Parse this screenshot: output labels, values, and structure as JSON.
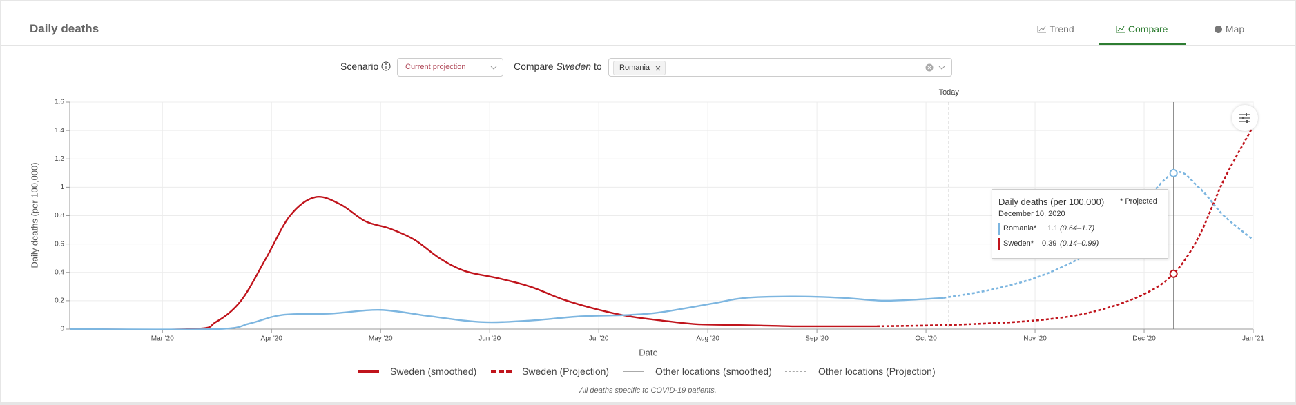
{
  "header": {
    "title": "Daily deaths",
    "tabs": [
      "Trend",
      "Compare",
      "Map"
    ]
  },
  "controls": {
    "scenario_label": "Scenario",
    "scenario_value": "Current projection",
    "compare_prefix": "Compare",
    "compare_location": "Sweden",
    "compare_suffix": "to",
    "selected": "Romania"
  },
  "chart_data": {
    "type": "line",
    "xlabel": "Date",
    "ylabel": "Daily deaths (per 100,000)",
    "xlim": [
      1.15,
      12
    ],
    "ylim": [
      0,
      1.6
    ],
    "xticks": [
      {
        "value": 2,
        "label": "Mar '20"
      },
      {
        "value": 3,
        "label": "Apr '20"
      },
      {
        "value": 4,
        "label": "May '20"
      },
      {
        "value": 5,
        "label": "Jun '20"
      },
      {
        "value": 6,
        "label": "Jul '20"
      },
      {
        "value": 7,
        "label": "Aug '20"
      },
      {
        "value": 8,
        "label": "Sep '20"
      },
      {
        "value": 9,
        "label": "Oct '20"
      },
      {
        "value": 10,
        "label": "Nov '20"
      },
      {
        "value": 11,
        "label": "Dec '20"
      },
      {
        "value": 12,
        "label": "Jan '21"
      }
    ],
    "yticks": [
      0,
      0.2,
      0.4,
      0.6,
      0.8,
      1,
      1.2,
      1.4,
      1.6
    ],
    "grid": true,
    "today": {
      "x": 9.21,
      "label": "Today"
    },
    "hover_x": 11.27,
    "series": [
      {
        "name": "Sweden (smoothed)",
        "color": "#c0141c",
        "dashed": false,
        "x": [
          1.15,
          2.27,
          2.49,
          2.72,
          2.95,
          3.17,
          3.4,
          3.63,
          3.86,
          4.08,
          4.31,
          4.54,
          4.77,
          5.07,
          5.37,
          5.67,
          5.98,
          6.28,
          6.58,
          6.89,
          7.19,
          7.49,
          7.8,
          8.1,
          8.55
        ],
        "values": [
          0,
          0,
          0.05,
          0.2,
          0.5,
          0.8,
          0.93,
          0.88,
          0.76,
          0.71,
          0.63,
          0.5,
          0.41,
          0.36,
          0.3,
          0.21,
          0.14,
          0.09,
          0.06,
          0.035,
          0.03,
          0.025,
          0.02,
          0.02,
          0.02
        ]
      },
      {
        "name": "Sweden (Projection)",
        "color": "#c0141c",
        "dashed": true,
        "x": [
          8.55,
          9.23,
          9.99,
          10.52,
          10.98,
          11.27,
          11.5,
          11.73,
          12
        ],
        "values": [
          0.02,
          0.03,
          0.06,
          0.12,
          0.24,
          0.39,
          0.65,
          1.05,
          1.43
        ]
      },
      {
        "name": "Other locations (smoothed)",
        "color": "#7db6e0",
        "legend_color": "#aaaaaa",
        "dashed": false,
        "x": [
          1.15,
          2.49,
          2.8,
          3.1,
          3.55,
          4,
          4.46,
          4.92,
          5.37,
          5.83,
          6.28,
          6.58,
          7.04,
          7.34,
          7.8,
          8.25,
          8.63,
          9.16
        ],
        "values": [
          0,
          0,
          0.04,
          0.1,
          0.11,
          0.135,
          0.09,
          0.05,
          0.06,
          0.09,
          0.1,
          0.12,
          0.18,
          0.22,
          0.23,
          0.22,
          0.2,
          0.22
        ]
      },
      {
        "name": "Other locations (Projection)",
        "color": "#7db6e0",
        "legend_color": "#aaaaaa",
        "dashed": true,
        "x": [
          9.16,
          9.61,
          10.07,
          10.52,
          10.89,
          11.27,
          11.5,
          11.73,
          12
        ],
        "values": [
          0.22,
          0.28,
          0.38,
          0.55,
          0.8,
          1.1,
          1,
          0.8,
          0.63
        ]
      }
    ],
    "tooltip": {
      "title": "Daily deaths (per 100,000)",
      "note": "* Projected",
      "date": "December 10, 2020",
      "rows": [
        {
          "name": "Romania*",
          "value": 1.1,
          "interval": "(0.64–1.7)",
          "color": "#7db6e0"
        },
        {
          "name": "Sweden*",
          "value": 0.39,
          "interval": "(0.14–0.99)",
          "color": "#c0141c"
        }
      ]
    }
  },
  "footnote": "All deaths specific to COVID-19 patients."
}
